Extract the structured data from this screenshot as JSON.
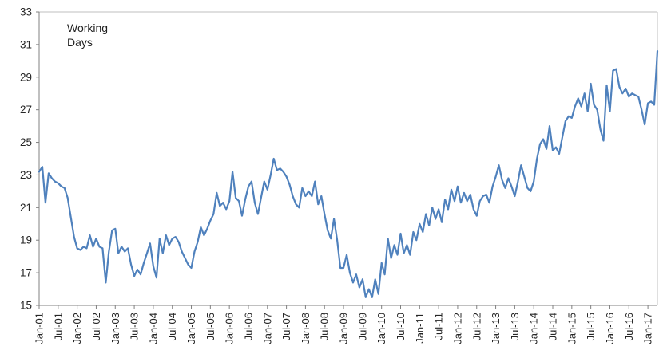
{
  "chart_data": {
    "type": "line",
    "title": "",
    "annotation": "Working Days",
    "series": [
      {
        "name": "Working Days",
        "frequency": "monthly",
        "start_label": "Jan-01",
        "end_label": "Apr-17",
        "values": [
          23.2,
          23.5,
          21.3,
          23.1,
          22.8,
          22.6,
          22.5,
          22.3,
          22.2,
          21.6,
          20.4,
          19.2,
          18.5,
          18.4,
          18.6,
          18.5,
          19.3,
          18.6,
          19.1,
          18.6,
          18.5,
          16.4,
          18.3,
          19.6,
          19.7,
          18.2,
          18.6,
          18.3,
          18.5,
          17.5,
          16.8,
          17.2,
          16.9,
          17.6,
          18.2,
          18.8,
          17.4,
          16.7,
          19.1,
          18.2,
          19.3,
          18.7,
          19.1,
          19.2,
          18.9,
          18.3,
          17.9,
          17.5,
          17.3,
          18.3,
          18.9,
          19.8,
          19.3,
          19.7,
          20.2,
          20.6,
          21.9,
          21.1,
          21.3,
          20.9,
          21.4,
          23.2,
          21.6,
          21.4,
          20.5,
          21.5,
          22.3,
          22.6,
          21.3,
          20.6,
          21.6,
          22.6,
          22.1,
          23.0,
          24.0,
          23.3,
          23.4,
          23.2,
          22.9,
          22.4,
          21.7,
          21.2,
          21.0,
          22.2,
          21.7,
          22.0,
          21.7,
          22.6,
          21.2,
          21.7,
          20.6,
          19.6,
          19.1,
          20.3,
          19.0,
          17.3,
          17.3,
          18.1,
          17.0,
          16.4,
          16.9,
          16.1,
          16.6,
          15.5,
          16.0,
          15.5,
          16.6,
          15.7,
          17.6,
          16.9,
          19.1,
          17.9,
          18.7,
          18.1,
          19.4,
          18.2,
          18.7,
          18.1,
          19.5,
          19.0,
          20.0,
          19.5,
          20.6,
          19.9,
          21.0,
          20.3,
          20.9,
          20.1,
          21.5,
          20.9,
          22.1,
          21.4,
          22.3,
          21.3,
          21.9,
          21.4,
          21.8,
          20.9,
          20.5,
          21.4,
          21.7,
          21.8,
          21.3,
          22.3,
          22.9,
          23.6,
          22.7,
          22.2,
          22.8,
          22.3,
          21.7,
          22.6,
          23.6,
          22.9,
          22.2,
          22.0,
          22.6,
          24.0,
          24.9,
          25.2,
          24.6,
          26.0,
          24.5,
          24.7,
          24.3,
          25.3,
          26.3,
          26.6,
          26.5,
          27.2,
          27.7,
          27.2,
          28.0,
          26.9,
          28.6,
          27.3,
          27.0,
          25.8,
          25.1,
          28.5,
          26.9,
          29.4,
          29.5,
          28.4,
          28.0,
          28.3,
          27.8,
          28.0,
          27.9,
          27.8,
          27.0,
          26.1,
          27.4,
          27.5,
          27.3,
          30.6
        ]
      }
    ],
    "x_tick_labels": [
      "Jan-01",
      "Jul-01",
      "Jan-02",
      "Jul-02",
      "Jan-03",
      "Jul-03",
      "Jan-04",
      "Jul-04",
      "Jan-05",
      "Jul-05",
      "Jan-06",
      "Jul-06",
      "Jan-07",
      "Jul-07",
      "Jan-08",
      "Jul-08",
      "Jan-09",
      "Jul-09",
      "Jan-10",
      "Jul-10",
      "Jan-11",
      "Jul-11",
      "Jan-12",
      "Jul-12",
      "Jan-13",
      "Jul-13",
      "Jan-14",
      "Jul-14",
      "Jan-15",
      "Jul-15",
      "Jan-16",
      "Jul-16",
      "Jan-17"
    ],
    "x_months_per_tick": 6,
    "y_ticks": [
      15,
      17,
      19,
      21,
      23,
      25,
      27,
      29,
      31,
      33
    ],
    "ylim": [
      15,
      33
    ],
    "grid": false,
    "legend": "none",
    "colors": {
      "line": "#4F81BD",
      "axis": "#808080",
      "plot_border": "#BFBFBF",
      "labels": "#262626"
    }
  }
}
